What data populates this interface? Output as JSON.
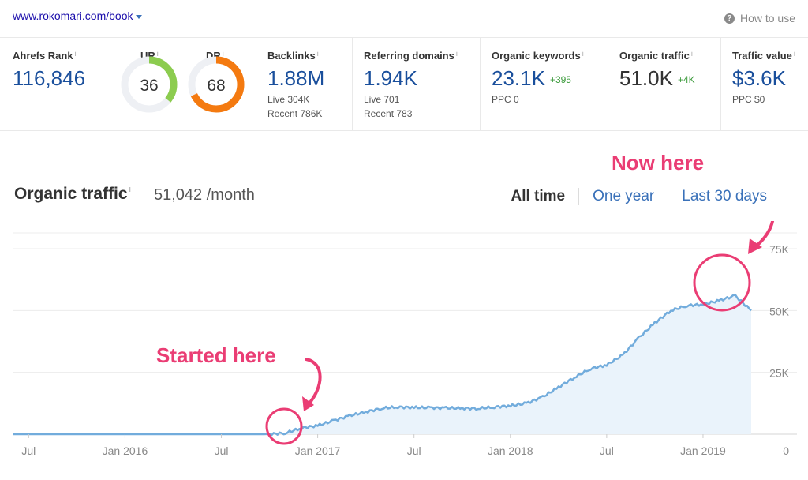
{
  "header": {
    "url": "www.rokomari.com/book",
    "how_to_use": "How to use",
    "info_mark": "i"
  },
  "metrics": {
    "ahrefs_rank": {
      "label": "Ahrefs Rank",
      "value": "116,846"
    },
    "ur": {
      "label": "UR",
      "value": "36",
      "score": 36,
      "color": "#8ccc4f"
    },
    "dr": {
      "label": "DR",
      "value": "68",
      "score": 68,
      "color": "#f47a10"
    },
    "backlinks": {
      "label": "Backlinks",
      "value": "1.88M",
      "live": "Live 304K",
      "recent": "Recent 786K"
    },
    "referring_domains": {
      "label": "Referring domains",
      "value": "1.94K",
      "live": "Live 701",
      "recent": "Recent 783"
    },
    "organic_keywords": {
      "label": "Organic keywords",
      "value": "23.1K",
      "delta": "+395",
      "ppc": "PPC 0"
    },
    "organic_traffic": {
      "label": "Organic traffic",
      "value": "51.0K",
      "delta": "+4K"
    },
    "traffic_value": {
      "label": "Traffic value",
      "value": "$3.6K",
      "ppc": "PPC $0"
    }
  },
  "section": {
    "title": "Organic traffic",
    "value": "51,042 /month",
    "tabs": [
      "All time",
      "One year",
      "Last 30 days"
    ],
    "active_tab": 0
  },
  "annotations": {
    "start": "Started here",
    "now": "Now here",
    "accent_color": "#ea3d74"
  },
  "chart_data": {
    "type": "area",
    "x_tick_labels": [
      "Jul",
      "Jan 2016",
      "Jul",
      "Jan 2017",
      "Jul",
      "Jan 2018",
      "Jul",
      "Jan 2019"
    ],
    "x_tick_months": [
      "2015-07",
      "2016-01",
      "2016-07",
      "2017-01",
      "2017-07",
      "2018-01",
      "2018-07",
      "2019-01"
    ],
    "y_tick_labels": [
      "0",
      "25K",
      "50K",
      "75K"
    ],
    "y_ticks": [
      0,
      25000,
      50000,
      75000
    ],
    "ylim": [
      0,
      75000
    ],
    "xlim": [
      "2015-06",
      "2019-04"
    ],
    "grid": true,
    "line_color": "#72acdc",
    "fill_color": "#eaf3fb",
    "series": [
      {
        "x": [
          "2015-06",
          "2015-07",
          "2015-10",
          "2016-01",
          "2016-04",
          "2016-07",
          "2016-10",
          "2016-11",
          "2016-12",
          "2017-01",
          "2017-02",
          "2017-03",
          "2017-04",
          "2017-05",
          "2017-06",
          "2017-07",
          "2017-08",
          "2017-09",
          "2017-10",
          "2017-11",
          "2017-12",
          "2018-01",
          "2018-02",
          "2018-03",
          "2018-04",
          "2018-05",
          "2018-06",
          "2018-07",
          "2018-08",
          "2018-09",
          "2018-10",
          "2018-11",
          "2018-12",
          "2019-01",
          "2019-02",
          "2019-03",
          "2019-04"
        ],
        "y": [
          0,
          0,
          0,
          0,
          0,
          0,
          0,
          500,
          2500,
          3500,
          5500,
          7500,
          9000,
          10500,
          11000,
          10800,
          10700,
          10600,
          10500,
          10400,
          11000,
          11500,
          12500,
          15000,
          19000,
          23000,
          26500,
          28000,
          32000,
          39000,
          45000,
          50000,
          52000,
          52500,
          54000,
          56000,
          50000
        ]
      }
    ]
  }
}
